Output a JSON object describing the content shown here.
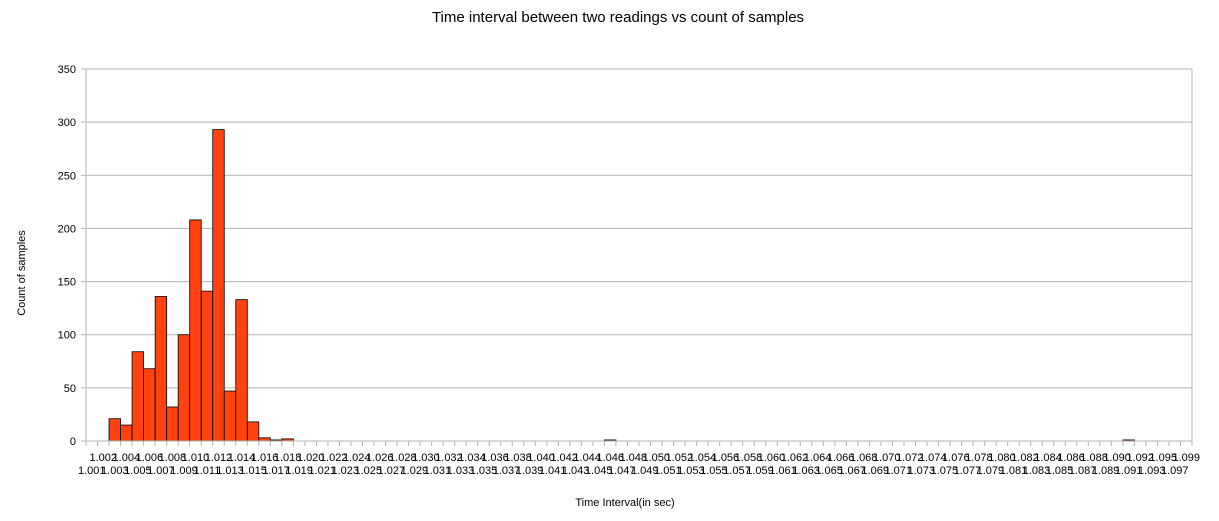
{
  "chart_data": {
    "type": "bar",
    "title": "Time interval between two readings vs count of samples",
    "xlabel": "Time Interval(in sec)",
    "ylabel": "Count of samples",
    "ylim": [
      0,
      350
    ],
    "yticks": [
      0,
      50,
      100,
      150,
      200,
      250,
      300,
      350
    ],
    "grid": true,
    "legend": "none",
    "bar_color": "#ff420e",
    "categories": [
      "1.001",
      "1.002",
      "1.003",
      "1.004",
      "1.005",
      "1.006",
      "1.007",
      "1.008",
      "1.009",
      "1.010",
      "1.011",
      "1.012",
      "1.013",
      "1.014",
      "1.015",
      "1.016",
      "1.017",
      "1.018",
      "1.019",
      "1.020",
      "1.021",
      "1.022",
      "1.023",
      "1.024",
      "1.025",
      "1.026",
      "1.027",
      "1.028",
      "1.029",
      "1.030",
      "1.031",
      "1.032",
      "1.033",
      "1.034",
      "1.035",
      "1.036",
      "1.037",
      "1.038",
      "1.039",
      "1.040",
      "1.041",
      "1.042",
      "1.043",
      "1.044",
      "1.045",
      "1.046",
      "1.047",
      "1.048",
      "1.049",
      "1.050",
      "1.051",
      "1.052",
      "1.053",
      "1.054",
      "1.055",
      "1.056",
      "1.057",
      "1.058",
      "1.059",
      "1.060",
      "1.061",
      "1.062",
      "1.063",
      "1.064",
      "1.065",
      "1.066",
      "1.067",
      "1.068",
      "1.069",
      "1.070",
      "1.071",
      "1.072",
      "1.073",
      "1.074",
      "1.075",
      "1.076",
      "1.077",
      "1.078",
      "1.079",
      "1.080",
      "1.081",
      "1.082",
      "1.083",
      "1.084",
      "1.085",
      "1.086",
      "1.087",
      "1.088",
      "1.089",
      "1.090",
      "1.091",
      "1.092",
      "1.093",
      "1.095",
      "1.097",
      "1.099"
    ],
    "values": [
      0,
      0,
      21,
      15,
      84,
      68,
      136,
      32,
      100,
      208,
      141,
      293,
      47,
      133,
      18,
      3,
      1,
      2,
      0,
      0,
      0,
      0,
      0,
      0,
      0,
      0,
      0,
      0,
      0,
      0,
      0,
      0,
      0,
      0,
      0,
      0,
      0,
      0,
      0,
      0,
      0,
      0,
      0,
      0,
      0,
      1,
      0,
      0,
      0,
      0,
      0,
      0,
      0,
      0,
      0,
      0,
      0,
      0,
      0,
      0,
      0,
      0,
      0,
      0,
      0,
      0,
      0,
      0,
      0,
      0,
      0,
      0,
      0,
      0,
      0,
      0,
      0,
      0,
      0,
      0,
      0,
      0,
      0,
      0,
      0,
      0,
      0,
      0,
      0,
      0,
      1,
      0,
      0,
      0,
      0,
      0
    ]
  }
}
